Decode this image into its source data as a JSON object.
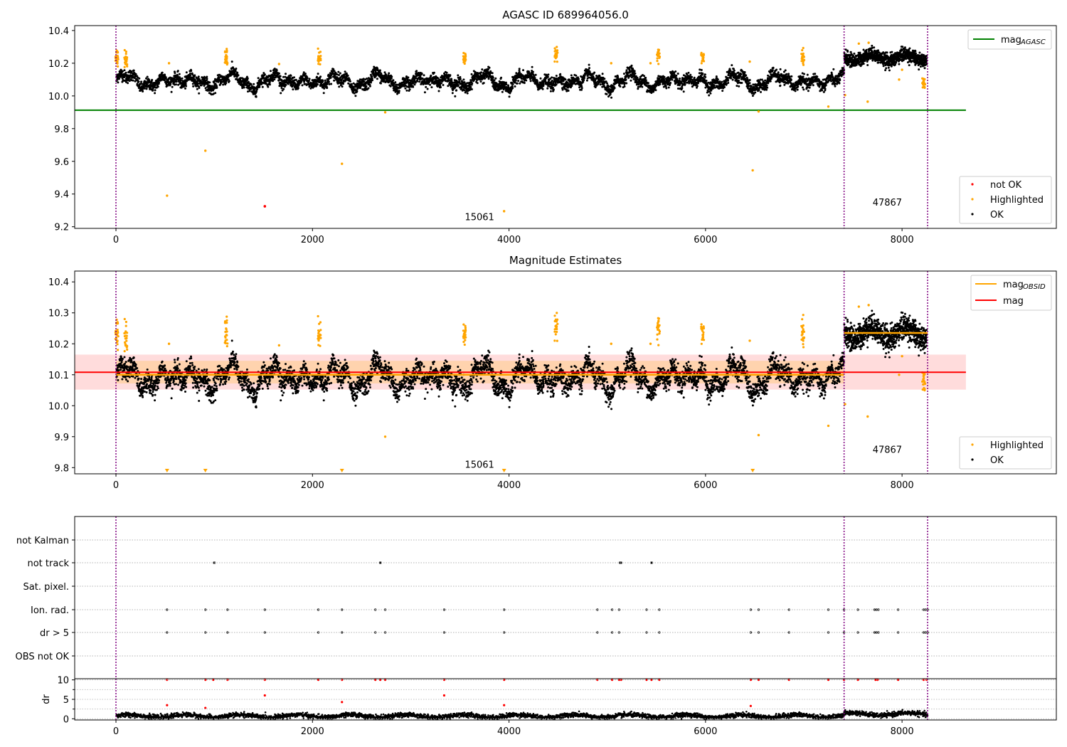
{
  "figure": {
    "panel1_title": "AGASC ID 689964056.0",
    "panel2_title": "Magnitude Estimates"
  },
  "chart_data": [
    {
      "type": "scatter",
      "title": "AGASC ID 689964056.0",
      "xlabel": "",
      "ylabel": "",
      "xlim": [
        -420,
        9570
      ],
      "ylim": [
        9.19,
        10.43
      ],
      "xticks": [
        0,
        2000,
        4000,
        6000,
        8000
      ],
      "yticks": [
        9.2,
        9.4,
        9.6,
        9.8,
        10.0,
        10.2,
        10.4
      ],
      "tick_labels_x": [
        "0",
        "2000",
        "4000",
        "6000",
        "8000"
      ],
      "tick_labels_y": [
        "9.2",
        "9.4",
        "9.6",
        "9.8",
        "10.0",
        "10.2",
        "10.4"
      ],
      "obs_boundaries": [
        0,
        7410,
        8260
      ],
      "obs_labels": [
        {
          "x": 3700,
          "y": 9.24,
          "text": "15061"
        },
        {
          "x": 7850,
          "y": 9.33,
          "text": "47867"
        }
      ],
      "lines": [
        {
          "name": "mag_AGASC",
          "legend": "mag",
          "legend_sub": "AGASC",
          "y": 9.913,
          "x": [
            -420,
            8650
          ],
          "color": "#008000"
        }
      ],
      "ok_series": {
        "name": "OK",
        "color": "#000000",
        "segments": [
          {
            "x_start": 0,
            "x_end": 7410,
            "base": 10.09,
            "amp": 0.045,
            "noise": 0.018
          },
          {
            "x_start": 7410,
            "x_end": 8260,
            "base": 10.235,
            "amp": 0.02,
            "noise": 0.02
          }
        ]
      },
      "highlighted": {
        "name": "Highlighted",
        "color": "#ffa500",
        "clusters": [
          [
            10,
            10.24
          ],
          [
            100,
            10.22
          ],
          [
            1120,
            10.23
          ],
          [
            2070,
            10.23
          ],
          [
            3550,
            10.23
          ],
          [
            4480,
            10.26
          ],
          [
            5520,
            10.24
          ],
          [
            5970,
            10.23
          ],
          [
            6990,
            10.23
          ],
          [
            8220,
            10.09
          ]
        ],
        "points": [
          [
            520,
            9.39
          ],
          [
            910,
            9.665
          ],
          [
            2300,
            9.585
          ],
          [
            2740,
            9.9
          ],
          [
            3950,
            9.295
          ],
          [
            6480,
            9.545
          ],
          [
            6540,
            9.905
          ],
          [
            7250,
            9.935
          ],
          [
            7420,
            10.005
          ],
          [
            7650,
            9.965
          ],
          [
            7970,
            10.1
          ],
          [
            7560,
            10.32
          ],
          [
            7660,
            10.325
          ],
          [
            8000,
            10.16
          ],
          [
            540,
            10.2
          ],
          [
            1660,
            10.195
          ],
          [
            5040,
            10.2
          ],
          [
            5440,
            10.2
          ],
          [
            6450,
            10.21
          ]
        ]
      },
      "not_ok": {
        "name": "not OK",
        "color": "#ff0000",
        "points": [
          [
            1515,
            9.325
          ]
        ]
      },
      "legends": [
        {
          "position": "upper right",
          "entries": [
            {
              "label": "mag",
              "sub": "AGASC",
              "kind": "line",
              "color": "#008000"
            }
          ]
        },
        {
          "position": "lower right",
          "entries": [
            {
              "label": "not OK",
              "kind": "dot",
              "color": "#ff0000"
            },
            {
              "label": "Highlighted",
              "kind": "dot",
              "color": "#ffa500"
            },
            {
              "label": "OK",
              "kind": "dot",
              "color": "#000000"
            }
          ]
        }
      ]
    },
    {
      "type": "scatter",
      "title": "Magnitude Estimates",
      "xlabel": "",
      "ylabel": "",
      "xlim": [
        -420,
        9570
      ],
      "ylim": [
        9.78,
        10.435
      ],
      "xticks": [
        0,
        2000,
        4000,
        6000,
        8000
      ],
      "yticks": [
        9.8,
        9.9,
        10.0,
        10.1,
        10.2,
        10.3,
        10.4
      ],
      "tick_labels_x": [
        "0",
        "2000",
        "4000",
        "6000",
        "8000"
      ],
      "tick_labels_y": [
        "9.8",
        "9.9",
        "10.0",
        "10.1",
        "10.2",
        "10.3",
        "10.4"
      ],
      "obs_boundaries": [
        0,
        7410,
        8260
      ],
      "obs_labels": [
        {
          "x": 3700,
          "y": 9.8,
          "text": "15061"
        },
        {
          "x": 7850,
          "y": 9.848,
          "text": "47867"
        }
      ],
      "bands": [
        {
          "x": [
            -420,
            8650
          ],
          "y": [
            10.052,
            10.165
          ],
          "color": "#ffd6d6"
        },
        {
          "x": [
            0,
            7410
          ],
          "y": [
            10.072,
            10.145
          ],
          "color": "#ffd1a6"
        }
      ],
      "lines": [
        {
          "name": "mag",
          "y": 10.108,
          "x": [
            -420,
            8650
          ],
          "color": "#ff0000"
        },
        {
          "name": "mag_OBSID",
          "segments": [
            {
              "x": [
                0,
                7410
              ],
              "y": 10.1
            },
            {
              "x": [
                7410,
                8260
              ],
              "y": 10.235
            }
          ],
          "color": "#ffa500"
        }
      ],
      "ok_series": {
        "name": "OK",
        "color": "#000000"
      },
      "highlighted": {
        "name": "Highlighted",
        "color": "#ffa500",
        "offscale_markers": [
          520,
          910,
          2300,
          3950,
          6480
        ]
      },
      "legends": [
        {
          "position": "upper right",
          "entries": [
            {
              "label": "mag",
              "sub": "OBSID",
              "kind": "line",
              "color": "#ffa500"
            },
            {
              "label": "mag",
              "kind": "line",
              "color": "#ff0000"
            }
          ]
        },
        {
          "position": "lower right",
          "entries": [
            {
              "label": "Highlighted",
              "kind": "dot",
              "color": "#ffa500"
            },
            {
              "label": "OK",
              "kind": "dot",
              "color": "#000000"
            }
          ]
        }
      ]
    },
    {
      "type": "scatter",
      "title": "",
      "xlabel": "",
      "ylabel": "",
      "xlim": [
        -420,
        9570
      ],
      "categories": [
        "not Kalman",
        "not track",
        "Sat. pixel.",
        "Ion. rad.",
        "dr > 5",
        "OBS not OK"
      ],
      "obs_boundaries": [
        0,
        7410,
        8260
      ],
      "flag_events": {
        "not track": [
          [
            990,
            1000
          ],
          [
            2680,
            2700
          ],
          [
            5120,
            5150
          ],
          [
            5440,
            5460
          ]
        ],
        "Ion. rad.": [
          520,
          910,
          1135,
          1515,
          2060,
          2300,
          2640,
          2740,
          3340,
          3950,
          4900,
          5050,
          5120,
          5400,
          5530,
          6460,
          6540,
          6850,
          7250,
          7410,
          7550,
          7720,
          7740,
          7760,
          7960,
          8220,
          8240,
          8260
        ],
        "dr > 5": [
          520,
          910,
          1135,
          1515,
          2060,
          2300,
          2640,
          2740,
          3340,
          3950,
          4900,
          5050,
          5120,
          5400,
          5530,
          6460,
          6540,
          6850,
          7250,
          7410,
          7550,
          7720,
          7740,
          7760,
          7960,
          8220,
          8240,
          8260
        ]
      }
    },
    {
      "type": "scatter",
      "title": "",
      "xlabel": "",
      "ylabel": "dr",
      "xlim": [
        -420,
        9570
      ],
      "ylim": [
        -0.3,
        10.3
      ],
      "xticks": [
        0,
        2000,
        4000,
        6000,
        8000
      ],
      "yticks": [
        0,
        5,
        10
      ],
      "tick_labels_x": [
        "0",
        "2000",
        "4000",
        "6000",
        "8000"
      ],
      "tick_labels_y": [
        "0",
        "5",
        "10"
      ],
      "obs_boundaries": [
        0,
        7410,
        8260
      ],
      "red_points": [
        [
          520,
          10
        ],
        [
          520,
          3.5
        ],
        [
          910,
          10
        ],
        [
          910,
          2.8
        ],
        [
          990,
          10
        ],
        [
          1135,
          10
        ],
        [
          1515,
          10
        ],
        [
          1515,
          6
        ],
        [
          2060,
          10
        ],
        [
          2300,
          10
        ],
        [
          2300,
          4.3
        ],
        [
          2640,
          10
        ],
        [
          2690,
          10
        ],
        [
          2740,
          10
        ],
        [
          3340,
          10
        ],
        [
          3340,
          6
        ],
        [
          3950,
          10
        ],
        [
          3950,
          3.5
        ],
        [
          4900,
          10
        ],
        [
          5050,
          10
        ],
        [
          5120,
          10
        ],
        [
          5140,
          10
        ],
        [
          5400,
          10
        ],
        [
          5450,
          10
        ],
        [
          5530,
          10
        ],
        [
          6460,
          10
        ],
        [
          6460,
          3.3
        ],
        [
          6540,
          10
        ],
        [
          6850,
          10
        ],
        [
          7250,
          10
        ],
        [
          7410,
          10
        ],
        [
          7550,
          10
        ],
        [
          7730,
          10
        ],
        [
          7750,
          10
        ],
        [
          7960,
          10
        ],
        [
          8220,
          10
        ],
        [
          8250,
          10
        ]
      ]
    }
  ]
}
